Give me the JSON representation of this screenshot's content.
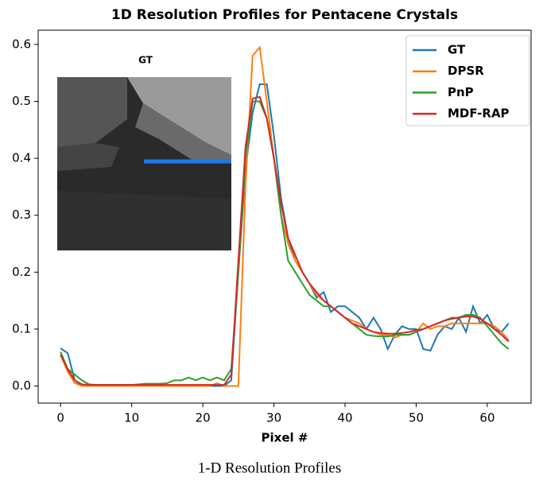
{
  "chart_data": {
    "type": "line",
    "title": "1D Resolution Profiles for Pentacene Crystals",
    "xlabel": "Pixel #",
    "caption": "1-D Resolution Profiles",
    "inset_label": "GT",
    "legend": "upper right",
    "x": [
      0,
      1,
      2,
      3,
      4,
      5,
      6,
      7,
      8,
      9,
      10,
      11,
      12,
      13,
      14,
      15,
      16,
      17,
      18,
      19,
      20,
      21,
      22,
      23,
      24,
      25,
      26,
      27,
      28,
      29,
      30,
      31,
      32,
      33,
      34,
      35,
      36,
      37,
      38,
      39,
      40,
      41,
      42,
      43,
      44,
      45,
      46,
      47,
      48,
      49,
      50,
      51,
      52,
      53,
      54,
      55,
      56,
      57,
      58,
      59,
      60,
      61,
      62,
      63
    ],
    "xlim": [
      -3.15,
      66.15
    ],
    "xticks": [
      0,
      10,
      20,
      30,
      40,
      50,
      60
    ],
    "ylim": [
      -0.03,
      0.625
    ],
    "yticks": [
      {
        "value": 0,
        "label": "0.0"
      },
      0.1,
      0.2,
      0.3,
      0.4,
      0.5,
      0.6
    ],
    "series": [
      {
        "name": "GT",
        "color": "#1f77b4",
        "values": [
          0.066,
          0.058,
          0.01,
          0.0,
          0,
          0,
          0,
          0,
          0,
          0,
          0,
          0,
          0,
          0,
          0,
          0,
          0,
          0,
          0,
          0,
          0,
          0,
          0,
          0,
          0.01,
          0.2,
          0.38,
          0.48,
          0.53,
          0.53,
          0.44,
          0.33,
          0.26,
          0.22,
          0.2,
          0.18,
          0.155,
          0.165,
          0.13,
          0.14,
          0.14,
          0.13,
          0.12,
          0.1,
          0.12,
          0.1,
          0.065,
          0.09,
          0.105,
          0.1,
          0.1,
          0.065,
          0.062,
          0.09,
          0.105,
          0.1,
          0.12,
          0.095,
          0.14,
          0.11,
          0.125,
          0.1,
          0.095,
          0.11
        ]
      },
      {
        "name": "DPSR",
        "color": "#ff7f0e",
        "values": [
          0.055,
          0.025,
          0.005,
          0,
          0,
          0,
          0,
          0,
          0,
          0,
          0,
          0,
          0,
          0,
          0,
          0,
          0,
          0,
          0,
          0,
          0,
          0,
          0.005,
          0,
          0,
          0,
          0.35,
          0.58,
          0.595,
          0.5,
          0.4,
          0.3,
          0.25,
          0.22,
          0.2,
          0.18,
          0.16,
          0.15,
          0.14,
          0.13,
          0.12,
          0.115,
          0.11,
          0.1,
          0.095,
          0.09,
          0.09,
          0.085,
          0.09,
          0.09,
          0.095,
          0.11,
          0.1,
          0.105,
          0.105,
          0.11,
          0.11,
          0.11,
          0.11,
          0.11,
          0.11,
          0.105,
          0.095,
          0.08
        ]
      },
      {
        "name": "PnP",
        "color": "#2ca02c",
        "values": [
          0.06,
          0.03,
          0.02,
          0.01,
          0.003,
          0.002,
          0.002,
          0.002,
          0.002,
          0.002,
          0.002,
          0.003,
          0.004,
          0.004,
          0.004,
          0.005,
          0.01,
          0.01,
          0.015,
          0.01,
          0.015,
          0.01,
          0.015,
          0.01,
          0.03,
          0.2,
          0.4,
          0.5,
          0.5,
          0.47,
          0.4,
          0.3,
          0.22,
          0.2,
          0.18,
          0.16,
          0.15,
          0.14,
          0.14,
          0.13,
          0.12,
          0.11,
          0.1,
          0.09,
          0.088,
          0.087,
          0.087,
          0.09,
          0.09,
          0.09,
          0.095,
          0.1,
          0.105,
          0.11,
          0.115,
          0.12,
          0.12,
          0.125,
          0.125,
          0.12,
          0.105,
          0.09,
          0.075,
          0.065
        ]
      },
      {
        "name": "MDF-RAP",
        "color": "#d62728",
        "values": [
          0.055,
          0.03,
          0.01,
          0.003,
          0.002,
          0.002,
          0.002,
          0.002,
          0.002,
          0.002,
          0.002,
          0.002,
          0.002,
          0.002,
          0.002,
          0.002,
          0.002,
          0.002,
          0.002,
          0.002,
          0.002,
          0.002,
          0.002,
          0.002,
          0.02,
          0.22,
          0.42,
          0.505,
          0.508,
          0.47,
          0.4,
          0.32,
          0.26,
          0.23,
          0.2,
          0.18,
          0.165,
          0.15,
          0.14,
          0.13,
          0.12,
          0.11,
          0.105,
          0.1,
          0.095,
          0.093,
          0.092,
          0.092,
          0.093,
          0.095,
          0.098,
          0.1,
          0.105,
          0.11,
          0.115,
          0.118,
          0.12,
          0.122,
          0.122,
          0.118,
          0.11,
          0.1,
          0.09,
          0.078
        ]
      }
    ]
  }
}
